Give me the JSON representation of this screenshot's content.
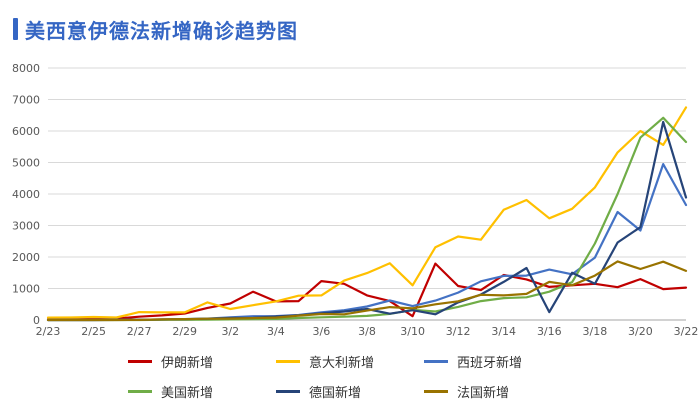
{
  "title": {
    "text": "美西意伊德法新增确诊趋势图",
    "color": "#3566C4"
  },
  "axis": {
    "label_color": "#595959",
    "gridline_color": "#D9D9D9",
    "baseline_color": "#A6A6A6"
  },
  "chart_data": {
    "type": "line",
    "title": "美西意伊德法新增确诊趋势图",
    "xlabel": "",
    "ylabel": "",
    "ylim": [
      0,
      8000
    ],
    "y_ticks": [
      0,
      1000,
      2000,
      3000,
      4000,
      5000,
      6000,
      7000,
      8000
    ],
    "grid": true,
    "legend_position": "bottom",
    "x_tick_every": 2,
    "x": [
      "2/23",
      "2/24",
      "2/25",
      "2/26",
      "2/27",
      "2/28",
      "2/29",
      "3/1",
      "3/2",
      "3/3",
      "3/4",
      "3/5",
      "3/6",
      "3/7",
      "3/8",
      "3/9",
      "3/10",
      "3/11",
      "3/12",
      "3/13",
      "3/14",
      "3/15",
      "3/16",
      "3/17",
      "3/18",
      "3/19",
      "3/20",
      "3/21",
      "3/22"
    ],
    "x_tick_labels": [
      "2/23",
      "2/25",
      "2/27",
      "2/29",
      "3/2",
      "3/4",
      "3/6",
      "3/8",
      "3/10",
      "3/12",
      "3/14",
      "3/16",
      "3/18",
      "3/20",
      "3/22"
    ],
    "series": [
      {
        "name": "伊朗新增",
        "color": "#C00000",
        "values": [
          15,
          20,
          35,
          45,
          105,
          145,
          205,
          385,
          525,
          900,
          590,
          600,
          1235,
          1150,
          780,
          600,
          120,
          1790,
          1080,
          950,
          1430,
          1290,
          1050,
          1100,
          1150,
          1040,
          1300,
          980,
          1030
        ]
      },
      {
        "name": "意大利新增",
        "color": "#FFC000",
        "values": [
          75,
          78,
          95,
          80,
          250,
          240,
          240,
          560,
          350,
          470,
          590,
          770,
          780,
          1250,
          1490,
          1800,
          1100,
          2310,
          2650,
          2550,
          3500,
          3810,
          3230,
          3530,
          4210,
          5320,
          6000,
          5560,
          6750
        ]
      },
      {
        "name": "西班牙新增",
        "color": "#4472C4",
        "values": [
          0,
          0,
          0,
          5,
          10,
          15,
          30,
          45,
          85,
          120,
          125,
          160,
          240,
          310,
          430,
          620,
          440,
          615,
          870,
          1230,
          1400,
          1410,
          1600,
          1450,
          1980,
          3430,
          2840,
          4950,
          3650
        ]
      },
      {
        "name": "美国新增",
        "color": "#70AD47",
        "values": [
          0,
          0,
          0,
          0,
          0,
          5,
          6,
          8,
          20,
          25,
          35,
          65,
          85,
          105,
          130,
          195,
          320,
          270,
          415,
          600,
          695,
          720,
          900,
          1200,
          2430,
          4000,
          5790,
          6420,
          5650
        ]
      },
      {
        "name": "德国新增",
        "color": "#264478",
        "values": [
          0,
          0,
          0,
          3,
          8,
          15,
          25,
          40,
          65,
          70,
          110,
          150,
          210,
          270,
          350,
          200,
          310,
          180,
          560,
          810,
          1210,
          1650,
          250,
          1500,
          1150,
          2460,
          2950,
          6290,
          3890
        ]
      },
      {
        "name": "法国新增",
        "color": "#997300",
        "values": [
          0,
          0,
          0,
          0,
          3,
          20,
          30,
          40,
          45,
          60,
          75,
          140,
          190,
          180,
          300,
          410,
          370,
          500,
          595,
          800,
          780,
          830,
          1210,
          1100,
          1410,
          1860,
          1620,
          1850,
          1560
        ]
      }
    ]
  }
}
